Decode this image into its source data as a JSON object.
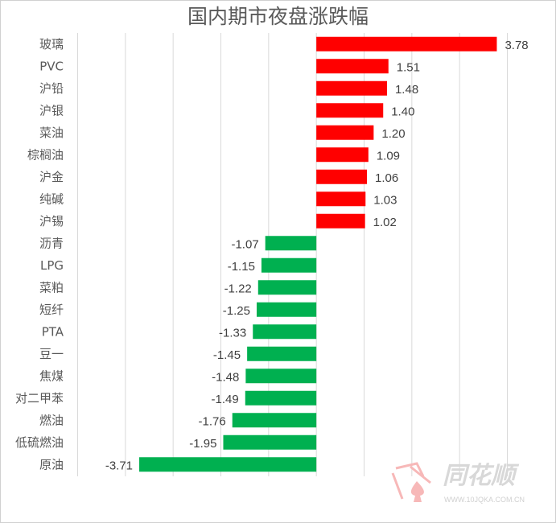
{
  "chart_data": {
    "type": "bar",
    "orientation": "horizontal",
    "title": "国内期市夜盘涨跌幅",
    "categories": [
      "玻璃",
      "PVC",
      "沪铅",
      "沪银",
      "菜油",
      "棕榈油",
      "沪金",
      "纯碱",
      "沪锡",
      "沥青",
      "LPG",
      "菜粕",
      "短纤",
      "PTA",
      "豆一",
      "焦煤",
      "对二甲苯",
      "燃油",
      "低硫燃油",
      "原油"
    ],
    "values": [
      3.78,
      1.51,
      1.48,
      1.4,
      1.2,
      1.09,
      1.06,
      1.03,
      1.02,
      -1.07,
      -1.15,
      -1.22,
      -1.25,
      -1.33,
      -1.45,
      -1.48,
      -1.49,
      -1.76,
      -1.95,
      -3.71
    ],
    "xlim": [
      -5,
      4
    ],
    "grid": true,
    "colors": {
      "positive": "#ff0000",
      "negative": "#00b050"
    }
  },
  "watermark": {
    "brand": "同花顺",
    "url": "WWW.10JQKA.COM.CN"
  }
}
